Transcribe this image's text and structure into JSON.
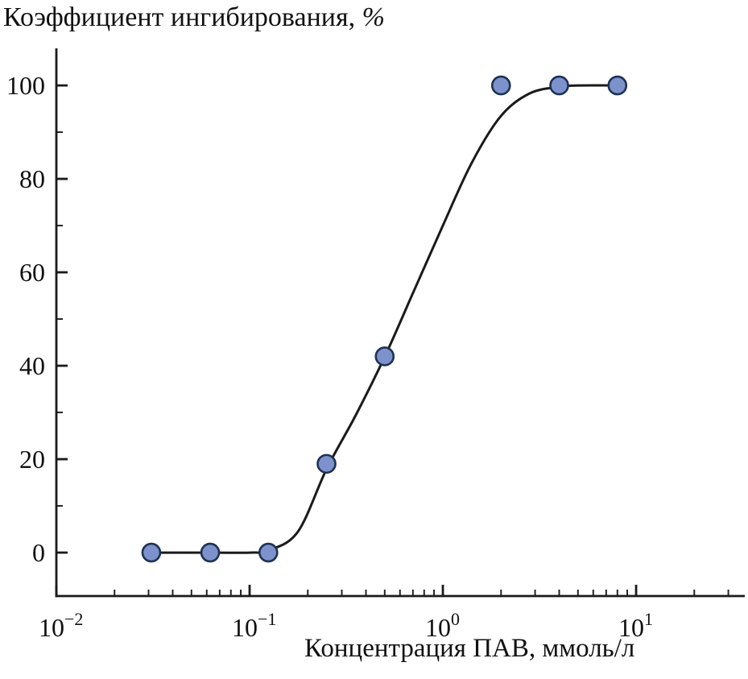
{
  "title": {
    "text": "Коэффициент ингибирования, ",
    "suffix_italic": "%"
  },
  "chart_data": {
    "type": "scatter",
    "title": "Коэффициент ингибирования, %",
    "xlabel": "Концентрация ПАВ, ммоль/л",
    "ylabel": "Коэффициент ингибирования, %",
    "x_scale": "log",
    "xlim": [
      0.01,
      36.5
    ],
    "ylim": [
      -9.3,
      107.6
    ],
    "x_major_ticks": [
      0.01,
      0.1,
      1,
      10
    ],
    "x_tick_exponents": [
      "−2",
      "−1",
      "0",
      "1"
    ],
    "x_tick_base": "10",
    "y_major_ticks": [
      0,
      20,
      40,
      60,
      80,
      100
    ],
    "y_minor_ticks": [
      10,
      30,
      50,
      70,
      90
    ],
    "grid": false,
    "legend": "none",
    "points": [
      [
        0.031,
        0
      ],
      [
        0.0625,
        0
      ],
      [
        0.125,
        0
      ],
      [
        0.25,
        19
      ],
      [
        0.5,
        42
      ],
      [
        2,
        100
      ],
      [
        4,
        100
      ],
      [
        8,
        100
      ]
    ],
    "curve": [
      [
        0.028,
        0
      ],
      [
        0.063,
        0
      ],
      [
        0.1,
        0
      ],
      [
        0.126,
        0.5
      ],
      [
        0.178,
        4.5
      ],
      [
        0.251,
        18
      ],
      [
        0.355,
        29.5
      ],
      [
        0.501,
        42
      ],
      [
        0.708,
        56
      ],
      [
        1.0,
        70
      ],
      [
        1.413,
        83.5
      ],
      [
        2.0,
        93.5
      ],
      [
        2.818,
        98.3
      ],
      [
        3.981,
        99.7
      ],
      [
        5.0,
        100
      ],
      [
        8.0,
        100
      ],
      [
        8.5,
        100
      ]
    ],
    "colors": {
      "line": "#1a1a1a",
      "axis": "#1a1a1a",
      "text": "#111111",
      "marker_fill": "#7d92cd",
      "marker_stroke": "#1e3250"
    },
    "marker_radius": 11
  }
}
